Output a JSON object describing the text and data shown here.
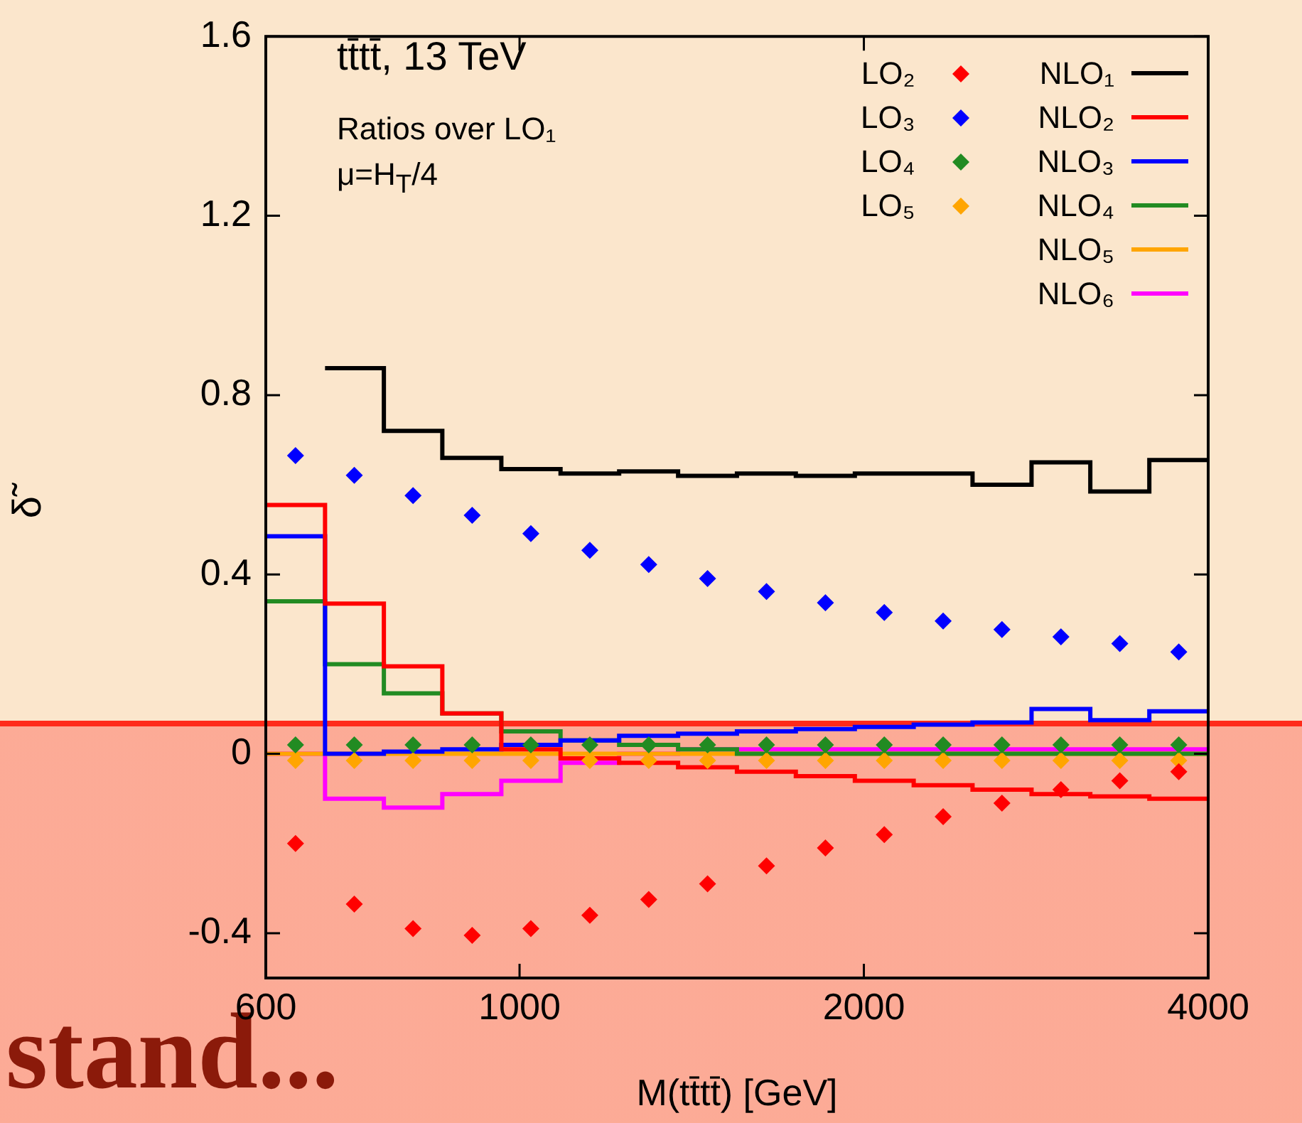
{
  "chart_data": {
    "type": "histogram",
    "xlabel": "M(tt̄tt̄) [GeV]",
    "ylabel": "δ̃",
    "annotations": [
      "tt̄tt̄, 13 TeV",
      "Ratios over LO₁",
      "μ=H$_{T}$/4",
      "stand..."
    ],
    "bins": [
      600,
      676,
      761,
      856,
      964,
      1086,
      1222,
      1376,
      1549,
      1744,
      1964,
      2211,
      2489,
      2803,
      3155,
      3553,
      4000
    ],
    "series": [
      {
        "name": "LO₂",
        "type": "scatter",
        "marker": "diamond",
        "color": "#ff0000",
        "x": [
          637,
          717,
          807,
          909,
          1023,
          1152,
          1297,
          1460,
          1644,
          1851,
          2084,
          2346,
          2641,
          2974,
          3348,
          3770
        ],
        "values": [
          -0.2,
          -0.335,
          -0.39,
          -0.405,
          -0.39,
          -0.36,
          -0.325,
          -0.29,
          -0.25,
          -0.21,
          -0.18,
          -0.14,
          -0.11,
          -0.08,
          -0.06,
          -0.04
        ]
      },
      {
        "name": "LO₃",
        "type": "scatter",
        "marker": "diamond",
        "color": "#0000ff",
        "x": [
          637,
          717,
          807,
          909,
          1023,
          1152,
          1297,
          1460,
          1644,
          1851,
          2084,
          2346,
          2641,
          2974,
          3348,
          3770
        ],
        "values": [
          0.665,
          0.621,
          0.576,
          0.532,
          0.491,
          0.454,
          0.422,
          0.391,
          0.362,
          0.337,
          0.315,
          0.296,
          0.277,
          0.261,
          0.246,
          0.227
        ]
      },
      {
        "name": "LO₄",
        "type": "scatter",
        "marker": "diamond",
        "color": "#228b22",
        "x": [
          637,
          717,
          807,
          909,
          1023,
          1152,
          1297,
          1460,
          1644,
          1851,
          2084,
          2346,
          2641,
          2974,
          3348,
          3770
        ],
        "values": [
          0.02,
          0.02,
          0.02,
          0.02,
          0.02,
          0.02,
          0.02,
          0.02,
          0.02,
          0.02,
          0.02,
          0.02,
          0.02,
          0.02,
          0.02,
          0.02
        ]
      },
      {
        "name": "LO₅",
        "type": "scatter",
        "marker": "diamond",
        "color": "#ffa500",
        "x": [
          637,
          717,
          807,
          909,
          1023,
          1152,
          1297,
          1460,
          1644,
          1851,
          2084,
          2346,
          2641,
          2974,
          3348,
          3770
        ],
        "values": [
          -0.015,
          -0.015,
          -0.015,
          -0.015,
          -0.015,
          -0.015,
          -0.015,
          -0.015,
          -0.015,
          -0.015,
          -0.015,
          -0.015,
          -0.015,
          -0.015,
          -0.015,
          -0.015
        ]
      },
      {
        "name": "NLO₁",
        "type": "step",
        "marker": "none",
        "color": "#000000",
        "x": [
          676,
          761,
          856,
          964,
          1086,
          1222,
          1376,
          1549,
          1744,
          1964,
          2211,
          2489,
          2803,
          3155,
          3553,
          4000
        ],
        "values": [
          0.86,
          0.72,
          0.66,
          0.635,
          0.625,
          0.63,
          0.62,
          0.625,
          0.62,
          0.625,
          0.625,
          0.6,
          0.65,
          0.585,
          0.655,
          0.655
        ]
      },
      {
        "name": "NLO₂",
        "marker": "none",
        "color": "#ff0000",
        "values": [
          0.555,
          0.335,
          0.195,
          0.09,
          0.01,
          -0.01,
          -0.02,
          -0.03,
          -0.04,
          -0.05,
          -0.06,
          -0.07,
          -0.08,
          -0.09,
          -0.095,
          -0.1
        ]
      },
      {
        "name": "NLO₃",
        "marker": "none",
        "color": "#0000ff",
        "values": [
          0.485,
          0,
          0.005,
          0.01,
          0.02,
          0.03,
          0.04,
          0.045,
          0.05,
          0.055,
          0.06,
          0.065,
          0.07,
          0.1,
          0.075,
          0.095
        ]
      },
      {
        "name": "NLO₄",
        "marker": "none",
        "color": "#228b22",
        "values": [
          0.34,
          0.2,
          0.135,
          0.09,
          0.05,
          0.03,
          0.02,
          0.01,
          0,
          0,
          0,
          0,
          0,
          0,
          0,
          0
        ]
      },
      {
        "name": "NLO₅",
        "marker": "none",
        "color": "#ffa500",
        "values": [
          0,
          0,
          0,
          0,
          0,
          0,
          0,
          0,
          0,
          0,
          0,
          0,
          0,
          0,
          0,
          0
        ]
      },
      {
        "name": "NLO₆",
        "marker": "none",
        "color": "#ff00ff",
        "values": [
          0,
          -0.1,
          -0.12,
          -0.09,
          -0.06,
          -0.02,
          0,
          0.01,
          0.01,
          0.01,
          0.01,
          0.01,
          0.01,
          0.01,
          0.01,
          0.01
        ]
      }
    ],
    "xlim": [
      600,
      4000
    ],
    "xticks": [
      600,
      1000,
      2000,
      4000
    ],
    "log": "x",
    "ylim": [
      -0.5,
      1.6
    ],
    "yticks": [
      -0.4,
      0,
      0.4,
      0.8,
      1.2,
      1.6
    ],
    "grid": false,
    "legend": "top right"
  }
}
